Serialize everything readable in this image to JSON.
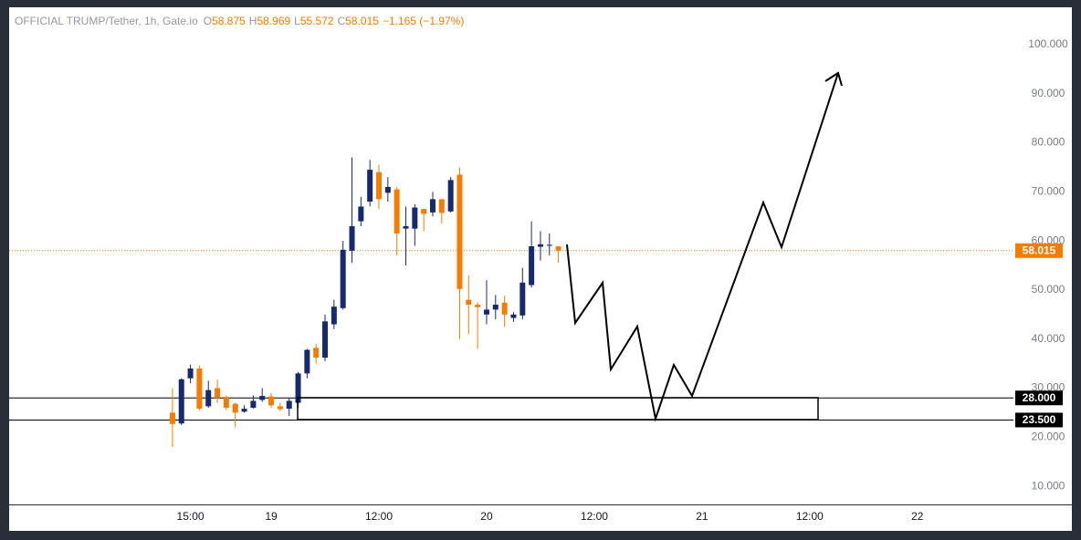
{
  "chart_data": {
    "type": "candlestick",
    "title": "OFFICIAL TRUMP/Tether, 1h, Gate.io",
    "ohlc_legend": [
      {
        "key": "O",
        "label": "58.875"
      },
      {
        "key": "H",
        "label": "58.969"
      },
      {
        "key": "L",
        "label": "55.572"
      },
      {
        "key": "C",
        "label": "58.015"
      }
    ],
    "change_label": "−1.165 (−1.97%)",
    "x": [
      13,
      14,
      15,
      16,
      17,
      18,
      19,
      20,
      21,
      22,
      23,
      24,
      25,
      26,
      27,
      28,
      29,
      30,
      31,
      32,
      33,
      34,
      35,
      36,
      37,
      38,
      39,
      40,
      41,
      42,
      43,
      44,
      45,
      46,
      47,
      48,
      49,
      50,
      51,
      52,
      53,
      54,
      55,
      56
    ],
    "open": [
      25,
      22.8,
      32,
      34,
      26.3,
      30,
      28.2,
      26.8,
      25.2,
      26,
      27.6,
      28.3,
      26.3,
      25.8,
      27,
      33,
      38.2,
      36.2,
      43,
      46.3,
      58,
      64,
      68,
      74,
      69.8,
      70.5,
      62.5,
      62.5,
      66.5,
      65.8,
      68.5,
      66,
      73.5,
      48,
      47,
      45,
      46,
      47.4,
      44.3,
      44.8,
      51,
      58.8,
      59,
      58.875
    ],
    "high": [
      30,
      32,
      34.8,
      34.6,
      31.5,
      31.7,
      28.5,
      27,
      26.5,
      28.5,
      30,
      29,
      27,
      28,
      33.3,
      38,
      39,
      45,
      48,
      60,
      77,
      69,
      76.5,
      75.5,
      73,
      71,
      67,
      67.5,
      66.5,
      70,
      68.5,
      73,
      75,
      53,
      47.5,
      52,
      49,
      48.8,
      45.5,
      54.5,
      64,
      62,
      61.5,
      58.969
    ],
    "low": [
      18,
      22.5,
      31,
      25.5,
      26,
      27,
      25.5,
      22,
      25,
      25.8,
      27.2,
      26,
      25.3,
      24.3,
      26,
      32,
      35,
      35.5,
      42,
      46,
      55.5,
      63,
      67,
      66.5,
      68,
      57,
      55,
      59,
      62,
      65,
      63.5,
      65.8,
      40,
      41,
      38,
      43,
      44,
      42.5,
      43.5,
      44,
      50.5,
      56,
      57,
      55.572
    ],
    "close": [
      22.7,
      31.8,
      34,
      25.8,
      29.6,
      28,
      26,
      25,
      25.8,
      27.4,
      28.4,
      26.5,
      25.7,
      27.4,
      33,
      37.8,
      36.2,
      43.6,
      46.6,
      58.2,
      63,
      67,
      74.5,
      68.5,
      71,
      61.5,
      63,
      66.8,
      65.5,
      68.5,
      65.7,
      72.4,
      50.2,
      47,
      46.5,
      46,
      47,
      45,
      45,
      51.5,
      58.9,
      59.3,
      59.2,
      58.015
    ],
    "up_color": "#172a6e",
    "down_color": "#f57c00",
    "xlim": [
      -5.2,
      106.7
    ],
    "xticks": [
      {
        "value": 15,
        "label": "15:00"
      },
      {
        "value": 24,
        "label": "19"
      },
      {
        "value": 36,
        "label": "12:00"
      },
      {
        "value": 48,
        "label": "20"
      },
      {
        "value": 60,
        "label": "12:00"
      },
      {
        "value": 72,
        "label": "21"
      },
      {
        "value": 84,
        "label": "12:00"
      },
      {
        "value": 96,
        "label": "22"
      }
    ],
    "ylim": [
      6.3,
      107.6
    ],
    "yticks": [
      {
        "value": 10,
        "label": "10.000"
      },
      {
        "value": 20,
        "label": "20.000"
      },
      {
        "value": 30,
        "label": "30.000"
      },
      {
        "value": 40,
        "label": "40.000"
      },
      {
        "value": 50,
        "label": "50.000"
      },
      {
        "value": 60,
        "label": "60.000"
      },
      {
        "value": 70,
        "label": "70.000"
      },
      {
        "value": 80,
        "label": "80.000"
      },
      {
        "value": 90,
        "label": "90.000"
      },
      {
        "value": 100,
        "label": "100.000"
      }
    ],
    "last_price": {
      "value": 58.015,
      "label": "58.015"
    },
    "levels": [
      {
        "value": 28,
        "label": "28.000"
      },
      {
        "value": 23.5,
        "label": "23.500"
      }
    ]
  }
}
